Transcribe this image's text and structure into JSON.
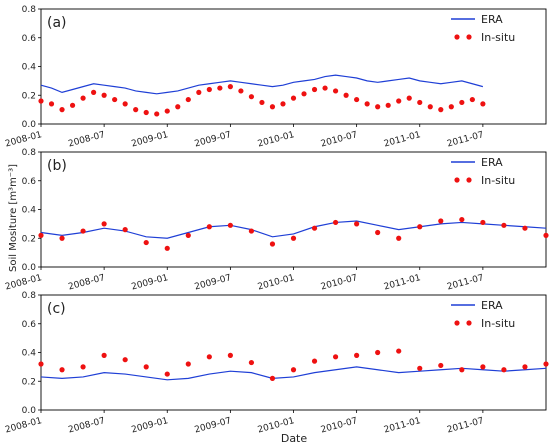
{
  "figure": {
    "ylabel": "Soil Mositure [m³m⁻³]",
    "xlabel": "Date"
  },
  "chart_data": [
    {
      "type": "line",
      "panel_label": "(a)",
      "x_ticks": [
        "2008-01",
        "2008-07",
        "2009-01",
        "2009-07",
        "2010-01",
        "2010-07",
        "2011-01",
        "2011-07"
      ],
      "ylim": [
        0.0,
        0.8
      ],
      "y_ticks": [
        "0.0",
        "0.2",
        "0.4",
        "0.6",
        "0.8"
      ],
      "legend_position": "top-right",
      "series": [
        {
          "name": "ERA",
          "kind": "line",
          "color": "#1f3fd6",
          "x_months": [
            0,
            1,
            2,
            3,
            4,
            5,
            6,
            7,
            8,
            9,
            10,
            11,
            12,
            13,
            14,
            15,
            16,
            17,
            18,
            19,
            20,
            21,
            22,
            23,
            24,
            25,
            26,
            27,
            28,
            29,
            30,
            31,
            32,
            33,
            34,
            35,
            36,
            37,
            38,
            39,
            40,
            41,
            42
          ],
          "values": [
            0.27,
            0.25,
            0.22,
            0.24,
            0.26,
            0.28,
            0.27,
            0.26,
            0.25,
            0.23,
            0.22,
            0.21,
            0.22,
            0.23,
            0.25,
            0.27,
            0.28,
            0.29,
            0.3,
            0.29,
            0.28,
            0.27,
            0.26,
            0.27,
            0.29,
            0.3,
            0.31,
            0.33,
            0.34,
            0.33,
            0.32,
            0.3,
            0.29,
            0.3,
            0.31,
            0.32,
            0.3,
            0.29,
            0.28,
            0.29,
            0.3,
            0.28,
            0.26
          ]
        },
        {
          "name": "In-situ",
          "kind": "points",
          "color": "#ee1111",
          "x_months": [
            0,
            1,
            2,
            3,
            4,
            5,
            6,
            7,
            8,
            9,
            10,
            11,
            12,
            13,
            14,
            15,
            16,
            17,
            18,
            19,
            20,
            21,
            22,
            23,
            24,
            25,
            26,
            27,
            28,
            29,
            30,
            31,
            32,
            33,
            34,
            35,
            36,
            37,
            38,
            39,
            40,
            41,
            42
          ],
          "values": [
            0.16,
            0.14,
            0.1,
            0.13,
            0.18,
            0.22,
            0.2,
            0.17,
            0.14,
            0.1,
            0.08,
            0.07,
            0.09,
            0.12,
            0.17,
            0.22,
            0.24,
            0.25,
            0.26,
            0.23,
            0.19,
            0.15,
            0.12,
            0.14,
            0.18,
            0.21,
            0.24,
            0.25,
            0.23,
            0.2,
            0.17,
            0.14,
            0.12,
            0.13,
            0.16,
            0.18,
            0.15,
            0.12,
            0.1,
            0.12,
            0.15,
            0.17,
            0.14
          ]
        }
      ]
    },
    {
      "type": "line",
      "panel_label": "(b)",
      "x_ticks": [
        "2008-01",
        "2008-07",
        "2009-01",
        "2009-07",
        "2010-01",
        "2010-07",
        "2011-01",
        "2011-07"
      ],
      "ylim": [
        0.0,
        0.8
      ],
      "y_ticks": [
        "0.0",
        "0.2",
        "0.4",
        "0.6",
        "0.8"
      ],
      "legend_position": "top-right",
      "series": [
        {
          "name": "ERA",
          "kind": "line",
          "color": "#1f3fd6",
          "x_months": [
            0,
            2,
            4,
            6,
            8,
            10,
            12,
            14,
            16,
            18,
            20,
            22,
            24,
            26,
            28,
            30,
            32,
            34,
            36,
            38,
            40,
            42,
            44,
            46,
            48
          ],
          "values": [
            0.24,
            0.22,
            0.24,
            0.27,
            0.25,
            0.21,
            0.2,
            0.24,
            0.28,
            0.29,
            0.26,
            0.21,
            0.23,
            0.28,
            0.31,
            0.32,
            0.29,
            0.26,
            0.28,
            0.3,
            0.31,
            0.3,
            0.29,
            0.28,
            0.27
          ]
        },
        {
          "name": "In-situ",
          "kind": "points",
          "color": "#ee1111",
          "x_months": [
            0,
            2,
            4,
            6,
            8,
            10,
            12,
            14,
            16,
            18,
            20,
            22,
            24,
            26,
            28,
            30,
            32,
            34,
            36,
            38,
            40,
            42,
            44,
            46,
            48
          ],
          "values": [
            0.22,
            0.2,
            0.25,
            0.3,
            0.26,
            0.17,
            0.13,
            0.22,
            0.28,
            0.29,
            0.25,
            0.16,
            0.2,
            0.27,
            0.31,
            0.3,
            0.24,
            0.2,
            0.28,
            0.32,
            0.33,
            0.31,
            0.29,
            0.27,
            0.22
          ]
        }
      ]
    },
    {
      "type": "line",
      "panel_label": "(c)",
      "x_ticks": [
        "2008-01",
        "2008-07",
        "2009-01",
        "2009-07",
        "2010-01",
        "2010-07",
        "2011-01",
        "2011-07"
      ],
      "ylim": [
        0.0,
        0.8
      ],
      "y_ticks": [
        "0.0",
        "0.2",
        "0.4",
        "0.6",
        "0.8"
      ],
      "legend_position": "top-right",
      "series": [
        {
          "name": "ERA",
          "kind": "line",
          "color": "#1f3fd6",
          "x_months": [
            0,
            2,
            4,
            6,
            8,
            10,
            12,
            14,
            16,
            18,
            20,
            22,
            24,
            26,
            28,
            30,
            32,
            34,
            36,
            38,
            40,
            42,
            44,
            46,
            48
          ],
          "values": [
            0.23,
            0.22,
            0.23,
            0.26,
            0.25,
            0.23,
            0.21,
            0.22,
            0.25,
            0.27,
            0.26,
            0.22,
            0.23,
            0.26,
            0.28,
            0.3,
            0.28,
            0.26,
            0.27,
            0.28,
            0.29,
            0.28,
            0.27,
            0.28,
            0.29
          ]
        },
        {
          "name": "In-situ",
          "kind": "points",
          "color": "#ee1111",
          "x_months": [
            0,
            2,
            4,
            6,
            8,
            10,
            12,
            14,
            16,
            18,
            20,
            22,
            24,
            26,
            28,
            30,
            32,
            34,
            36,
            38,
            40,
            42,
            44,
            46,
            48
          ],
          "values": [
            0.32,
            0.28,
            0.3,
            0.38,
            0.35,
            0.3,
            0.25,
            0.32,
            0.37,
            0.38,
            0.33,
            0.22,
            0.28,
            0.34,
            0.37,
            0.38,
            0.4,
            0.41,
            0.29,
            0.31,
            0.28,
            0.3,
            0.28,
            0.3,
            0.32
          ]
        }
      ]
    }
  ]
}
